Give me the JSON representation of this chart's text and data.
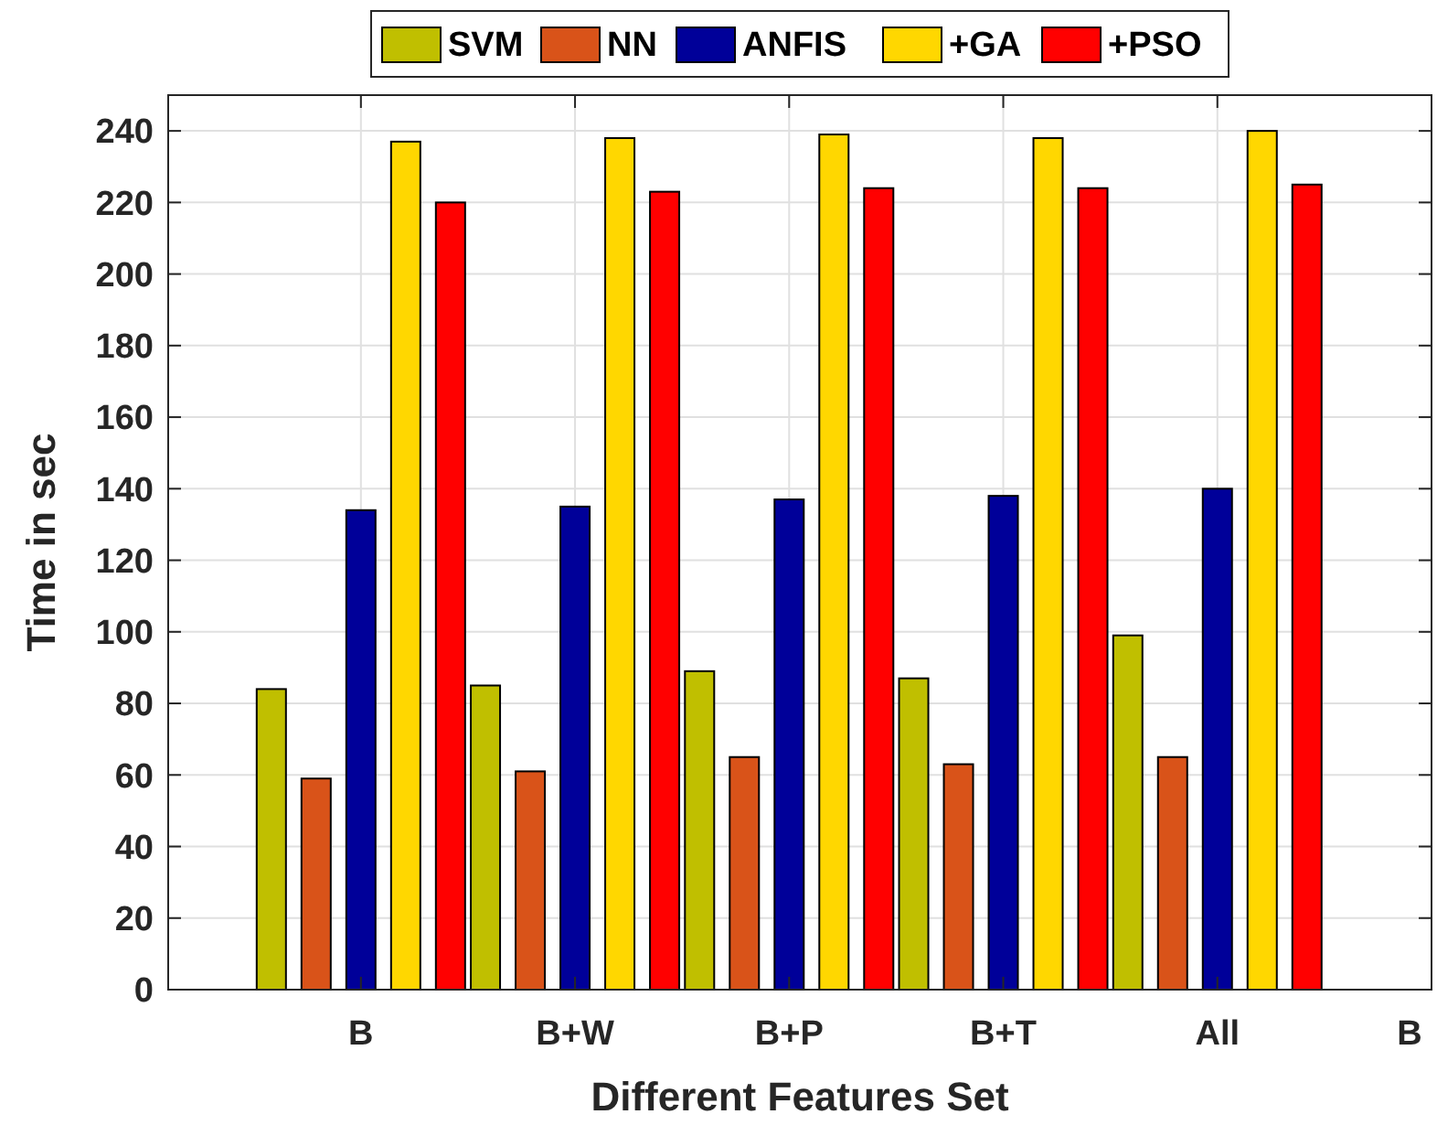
{
  "chart_data": {
    "type": "bar",
    "xlabel": "Different Features Set",
    "ylabel": "Time in sec",
    "categories": [
      "B",
      "B+W",
      "B+P",
      "B+T",
      "All",
      "B"
    ],
    "series": [
      {
        "name": "SVM",
        "color": "#c0bf00",
        "values": [
          84,
          85,
          89,
          87,
          99,
          null
        ]
      },
      {
        "name": "NN",
        "color": "#d95319",
        "values": [
          59,
          61,
          65,
          63,
          65,
          null
        ]
      },
      {
        "name": "ANFIS",
        "color": "#000099",
        "values": [
          134,
          135,
          137,
          138,
          140,
          null
        ]
      },
      {
        "name": "+GA",
        "color": "#ffd700",
        "values": [
          237,
          238,
          239,
          238,
          240,
          null
        ]
      },
      {
        "name": "+PSO",
        "color": "#ff0000",
        "values": [
          220,
          223,
          224,
          224,
          225,
          null
        ]
      }
    ],
    "ylim": [
      0,
      250
    ],
    "yticks": [
      0,
      20,
      40,
      60,
      80,
      100,
      120,
      140,
      160,
      180,
      200,
      220,
      240
    ],
    "grid": true,
    "legend": "top"
  }
}
